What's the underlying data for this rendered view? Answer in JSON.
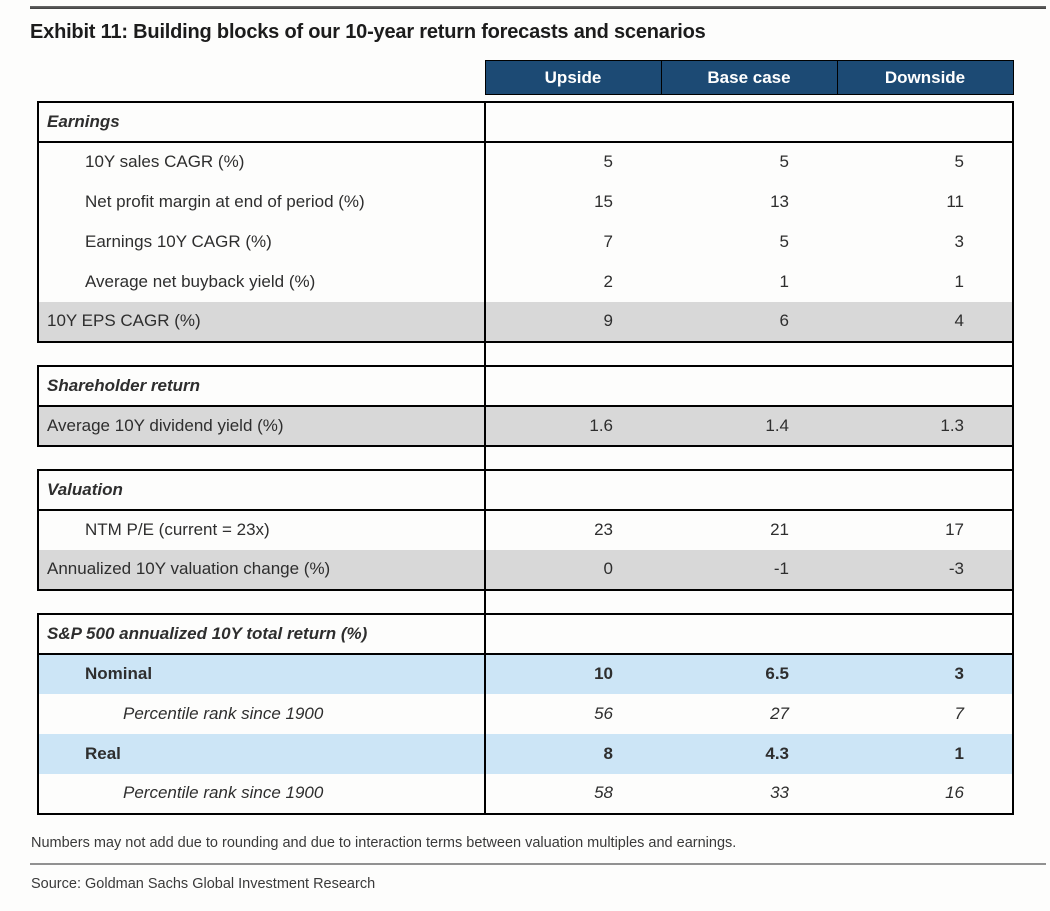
{
  "title": "Exhibit 11: Building blocks of our 10-year return forecasts and scenarios",
  "colors": {
    "header_bg": "#1c4a74",
    "header_text": "#ffffff",
    "gray_row": "#d8d8d8",
    "blue_row": "#cce5f6",
    "border": "#000000"
  },
  "table": {
    "columns": [
      "Upside",
      "Base case",
      "Downside"
    ],
    "sections": [
      {
        "header": "Earnings",
        "rows": [
          {
            "label": "10Y sales CAGR (%)",
            "values": [
              "5",
              "5",
              "5"
            ]
          },
          {
            "label": "Net profit margin at end of period (%)",
            "values": [
              "15",
              "13",
              "11"
            ]
          },
          {
            "label": "Earnings 10Y CAGR (%)",
            "values": [
              "7",
              "5",
              "3"
            ]
          },
          {
            "label": "Average net buyback yield (%)",
            "values": [
              "2",
              "1",
              "1"
            ]
          },
          {
            "label": "10Y EPS CAGR (%)",
            "values": [
              "9",
              "6",
              "4"
            ]
          }
        ]
      },
      {
        "header": "Shareholder return",
        "rows": [
          {
            "label": "Average 10Y dividend yield (%)",
            "values": [
              "1.6",
              "1.4",
              "1.3"
            ]
          }
        ]
      },
      {
        "header": "Valuation",
        "rows": [
          {
            "label": "NTM P/E (current = 23x)",
            "values": [
              "23",
              "21",
              "17"
            ]
          },
          {
            "label": "Annualized 10Y valuation change (%)",
            "values": [
              "0",
              "-1",
              "-3"
            ]
          }
        ]
      },
      {
        "header": "S&P 500 annualized 10Y total return (%)",
        "rows": [
          {
            "label": "Nominal",
            "values": [
              "10",
              "6.5",
              "3"
            ]
          },
          {
            "label": "Percentile rank since 1900",
            "values": [
              "56",
              "27",
              "7"
            ]
          },
          {
            "label": "Real",
            "values": [
              "8",
              "4.3",
              "1"
            ]
          },
          {
            "label": "Percentile rank since 1900",
            "values": [
              "58",
              "33",
              "16"
            ]
          }
        ]
      }
    ]
  },
  "footnote": "Numbers may not add due to rounding and due to interaction terms between valuation multiples and earnings.",
  "source": "Source: Goldman Sachs Global Investment Research"
}
